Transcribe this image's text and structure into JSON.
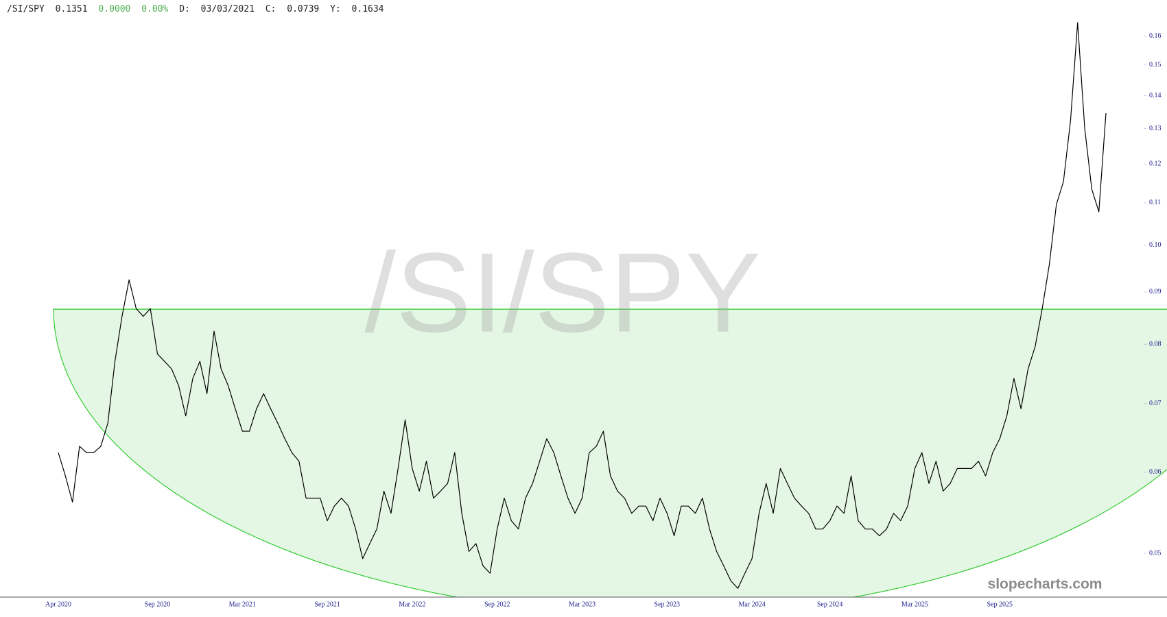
{
  "chart_data": {
    "type": "line",
    "header": {
      "symbol": "/SI/SPY",
      "last": "0.1351",
      "change": "0.0000",
      "change_pct": "0.00%",
      "date_label": "D:",
      "date": "03/03/2021",
      "c_label": "C:",
      "c": "0.0739",
      "y_label": "Y:",
      "y": "0.1634"
    },
    "source": "slopecharts.com",
    "log_scale": true,
    "color": "#000000",
    "ylim": [
      0.0453,
      0.1736
    ],
    "yticks": [
      0.05,
      0.06,
      0.07,
      0.08,
      0.09,
      {
        "value": 0.1,
        "label": "0.10"
      },
      0.11,
      0.12,
      0.13,
      0.14,
      0.15,
      0.16
    ],
    "categories": [
      "Apr 2020",
      null,
      null,
      null,
      null,
      null,
      null,
      null,
      null,
      null,
      null,
      null,
      null,
      null,
      "Sep 2020",
      null,
      null,
      null,
      null,
      null,
      null,
      null,
      null,
      null,
      null,
      null,
      "Mar 2021",
      null,
      null,
      null,
      null,
      null,
      null,
      null,
      null,
      null,
      null,
      null,
      "Sep 2021",
      null,
      null,
      null,
      null,
      null,
      null,
      null,
      null,
      null,
      null,
      null,
      "Mar 2022",
      null,
      null,
      null,
      null,
      null,
      null,
      null,
      null,
      null,
      null,
      null,
      "Sep 2022",
      null,
      null,
      null,
      null,
      null,
      null,
      null,
      null,
      null,
      null,
      null,
      "Mar 2023",
      null,
      null,
      null,
      null,
      null,
      null,
      null,
      null,
      null,
      null,
      null,
      "Sep 2023",
      null,
      null,
      null,
      null,
      null,
      null,
      null,
      null,
      null,
      null,
      null,
      "Mar 2024",
      null,
      null,
      null,
      null,
      null,
      null,
      null,
      null,
      null,
      null,
      "Sep 2024",
      null,
      null,
      null,
      null,
      null,
      null,
      null,
      null,
      null,
      null,
      null,
      "Mar 2025",
      null,
      null,
      null,
      null,
      null,
      null,
      null,
      null,
      null,
      null,
      null,
      "Sep 2025",
      null,
      null,
      null,
      null,
      null,
      null,
      null,
      null,
      null,
      null,
      null,
      null,
      null,
      null,
      null
    ],
    "values": [
      0.0627,
      0.0595,
      0.0561,
      0.0636,
      0.0627,
      0.0627,
      0.0636,
      0.067,
      0.077,
      0.0852,
      0.0925,
      0.0867,
      0.0852,
      0.0867,
      0.0783,
      0.077,
      0.0757,
      0.0729,
      0.0681,
      0.0741,
      0.077,
      0.0716,
      0.0824,
      0.0757,
      0.0729,
      0.0692,
      0.0658,
      0.0658,
      0.0692,
      0.0716,
      0.0692,
      0.067,
      0.0647,
      0.0627,
      0.0615,
      0.0566,
      0.0566,
      0.0566,
      0.0538,
      0.0556,
      0.0566,
      0.0556,
      0.0528,
      0.0494,
      0.0511,
      0.0528,
      0.0575,
      0.0547,
      0.0605,
      0.0675,
      0.0605,
      0.0575,
      0.0615,
      0.0566,
      0.0575,
      0.0585,
      0.0627,
      0.0547,
      0.0502,
      0.0511,
      0.0486,
      0.0478,
      0.0528,
      0.0566,
      0.0538,
      0.0528,
      0.0566,
      0.0585,
      0.0615,
      0.0647,
      0.0627,
      0.0595,
      0.0566,
      0.0547,
      0.0566,
      0.0627,
      0.0636,
      0.0658,
      0.0595,
      0.0575,
      0.0566,
      0.0547,
      0.0556,
      0.0556,
      0.0538,
      0.0566,
      0.0547,
      0.052,
      0.0556,
      0.0556,
      0.0547,
      0.0566,
      0.0528,
      0.0502,
      0.0486,
      0.047,
      0.0462,
      0.0478,
      0.0494,
      0.0547,
      0.0585,
      0.0547,
      0.0605,
      0.0585,
      0.0566,
      0.0556,
      0.0547,
      0.0528,
      0.0528,
      0.0538,
      0.0556,
      0.0547,
      0.0595,
      0.0538,
      0.0528,
      0.0528,
      0.052,
      0.0528,
      0.0547,
      0.0538,
      0.0556,
      0.0605,
      0.0627,
      0.0585,
      0.0615,
      0.0575,
      0.0585,
      0.0605,
      0.0605,
      0.0605,
      0.0615,
      0.0595,
      0.0627,
      0.0647,
      0.0681,
      0.0741,
      0.0692,
      0.0757,
      0.0796,
      0.0867,
      0.0957,
      0.1096,
      0.1154,
      0.1324,
      0.165,
      0.1301,
      0.1134,
      0.1078,
      0.1346
    ]
  }
}
